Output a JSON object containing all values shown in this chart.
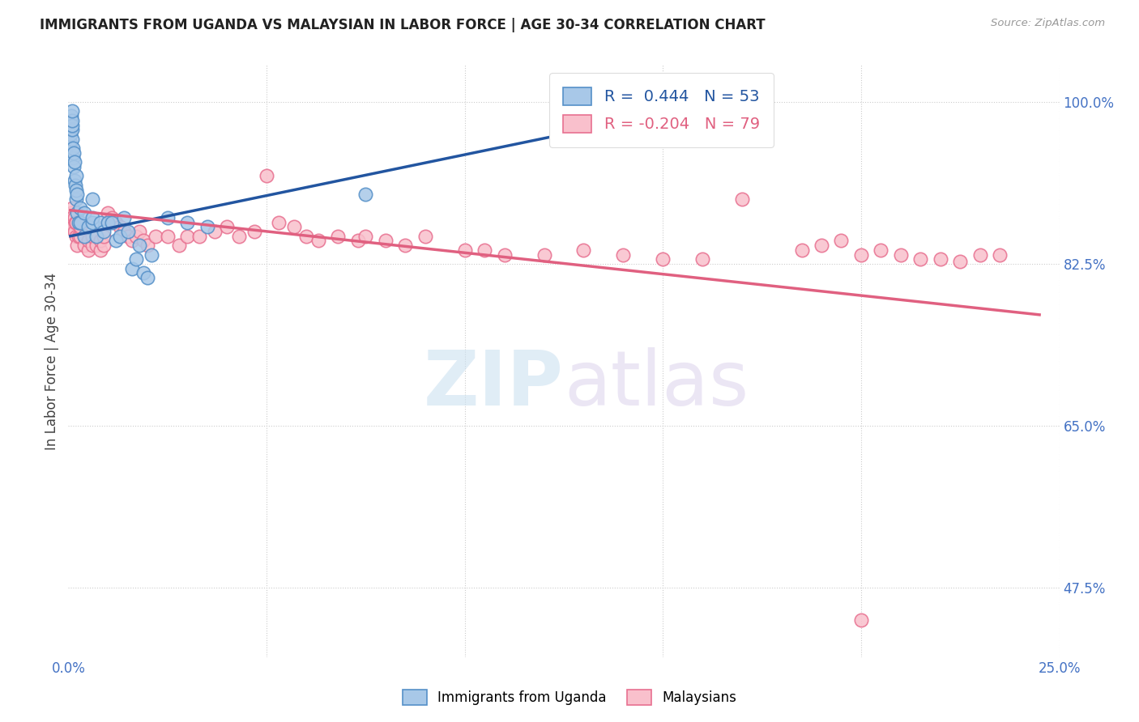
{
  "title": "IMMIGRANTS FROM UGANDA VS MALAYSIAN IN LABOR FORCE | AGE 30-34 CORRELATION CHART",
  "source": "Source: ZipAtlas.com",
  "ylabel": "In Labor Force | Age 30-34",
  "xlim": [
    0.0,
    0.25
  ],
  "ylim": [
    0.4,
    1.04
  ],
  "xticks": [
    0.0,
    0.05,
    0.1,
    0.15,
    0.2,
    0.25
  ],
  "xticklabels": [
    "0.0%",
    "",
    "",
    "",
    "",
    "25.0%"
  ],
  "yticks_right": [
    0.475,
    0.65,
    0.825,
    1.0
  ],
  "ytick_labels_right": [
    "47.5%",
    "65.0%",
    "82.5%",
    "100.0%"
  ],
  "uganda_R": 0.444,
  "uganda_N": 53,
  "malaysia_R": -0.204,
  "malaysia_N": 79,
  "uganda_color": "#a8c8e8",
  "malaysia_color": "#f9c0cc",
  "uganda_edge_color": "#5590c8",
  "malaysia_edge_color": "#e87090",
  "uganda_line_color": "#2255a0",
  "malaysia_line_color": "#e06080",
  "legend_label_uganda": "Immigrants from Uganda",
  "legend_label_malaysia": "Malaysians",
  "background_color": "#ffffff",
  "watermark_zip": "ZIP",
  "watermark_atlas": "atlas",
  "uganda_line_x": [
    0.0005,
    0.17
  ],
  "uganda_line_y": [
    0.855,
    1.005
  ],
  "malaysia_line_x": [
    0.0005,
    0.245
  ],
  "malaysia_line_y": [
    0.883,
    0.77
  ],
  "uganda_x": [
    0.0005,
    0.0005,
    0.0007,
    0.0007,
    0.0007,
    0.0008,
    0.001,
    0.001,
    0.001,
    0.001,
    0.001,
    0.0012,
    0.0012,
    0.0014,
    0.0014,
    0.0016,
    0.0016,
    0.0018,
    0.002,
    0.002,
    0.002,
    0.0022,
    0.0022,
    0.0025,
    0.003,
    0.003,
    0.004,
    0.004,
    0.005,
    0.006,
    0.006,
    0.006,
    0.007,
    0.008,
    0.009,
    0.01,
    0.011,
    0.012,
    0.013,
    0.014,
    0.015,
    0.016,
    0.017,
    0.018,
    0.019,
    0.02,
    0.021,
    0.025,
    0.03,
    0.035,
    0.075,
    0.13,
    0.17
  ],
  "uganda_y": [
    0.955,
    0.965,
    0.97,
    0.975,
    0.98,
    0.985,
    0.96,
    0.97,
    0.975,
    0.98,
    0.99,
    0.94,
    0.95,
    0.93,
    0.945,
    0.915,
    0.935,
    0.91,
    0.895,
    0.905,
    0.92,
    0.88,
    0.9,
    0.87,
    0.87,
    0.885,
    0.855,
    0.88,
    0.865,
    0.87,
    0.875,
    0.895,
    0.855,
    0.87,
    0.86,
    0.87,
    0.87,
    0.85,
    0.855,
    0.875,
    0.86,
    0.82,
    0.83,
    0.845,
    0.815,
    0.81,
    0.835,
    0.875,
    0.87,
    0.865,
    0.9,
    0.96,
    0.97
  ],
  "malaysia_x": [
    0.0005,
    0.0008,
    0.001,
    0.001,
    0.0012,
    0.0015,
    0.0015,
    0.0018,
    0.002,
    0.002,
    0.0022,
    0.0025,
    0.003,
    0.003,
    0.004,
    0.004,
    0.005,
    0.005,
    0.006,
    0.006,
    0.007,
    0.007,
    0.008,
    0.008,
    0.009,
    0.009,
    0.01,
    0.01,
    0.011,
    0.012,
    0.013,
    0.014,
    0.015,
    0.016,
    0.017,
    0.018,
    0.019,
    0.02,
    0.022,
    0.025,
    0.028,
    0.03,
    0.033,
    0.037,
    0.04,
    0.043,
    0.047,
    0.05,
    0.053,
    0.057,
    0.06,
    0.063,
    0.068,
    0.073,
    0.075,
    0.08,
    0.085,
    0.09,
    0.1,
    0.105,
    0.11,
    0.12,
    0.13,
    0.14,
    0.15,
    0.16,
    0.17,
    0.185,
    0.19,
    0.195,
    0.2,
    0.205,
    0.21,
    0.215,
    0.22,
    0.225,
    0.23,
    0.235,
    0.2
  ],
  "malaysia_y": [
    0.87,
    0.88,
    0.885,
    0.875,
    0.865,
    0.86,
    0.875,
    0.87,
    0.855,
    0.87,
    0.845,
    0.855,
    0.855,
    0.865,
    0.845,
    0.855,
    0.84,
    0.85,
    0.845,
    0.855,
    0.845,
    0.855,
    0.84,
    0.85,
    0.845,
    0.855,
    0.87,
    0.88,
    0.875,
    0.87,
    0.865,
    0.86,
    0.855,
    0.85,
    0.855,
    0.86,
    0.85,
    0.845,
    0.855,
    0.855,
    0.845,
    0.855,
    0.855,
    0.86,
    0.865,
    0.855,
    0.86,
    0.92,
    0.87,
    0.865,
    0.855,
    0.85,
    0.855,
    0.85,
    0.855,
    0.85,
    0.845,
    0.855,
    0.84,
    0.84,
    0.835,
    0.835,
    0.84,
    0.835,
    0.83,
    0.83,
    0.895,
    0.84,
    0.845,
    0.85,
    0.835,
    0.84,
    0.835,
    0.83,
    0.83,
    0.828,
    0.835,
    0.835,
    0.44
  ]
}
